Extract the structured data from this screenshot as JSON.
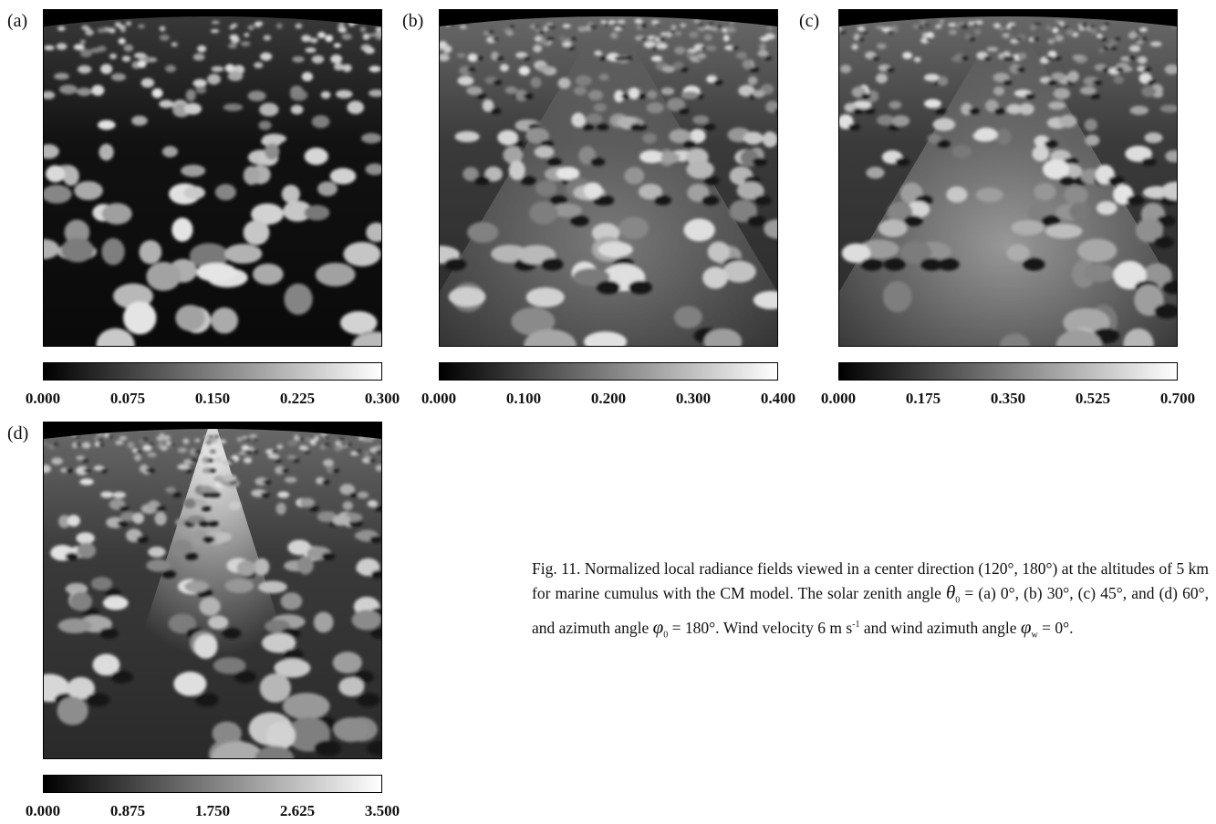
{
  "panels": [
    {
      "label": "(a)",
      "colorbar_ticks": [
        "0.000",
        "0.075",
        "0.150",
        "0.225",
        "0.300"
      ]
    },
    {
      "label": "(b)",
      "colorbar_ticks": [
        "0.000",
        "0.100",
        "0.200",
        "0.300",
        "0.400"
      ]
    },
    {
      "label": "(c)",
      "colorbar_ticks": [
        "0.000",
        "0.175",
        "0.350",
        "0.525",
        "0.700"
      ]
    },
    {
      "label": "(d)",
      "colorbar_ticks": [
        "0.000",
        "0.875",
        "1.750",
        "2.625",
        "3.500"
      ]
    }
  ],
  "caption": [
    "Fig. 11. Normalized local radiance fields viewed in a center direction (120°, 180°) at the altitudes of 5 km for marine cumulus with the CM model. The solar zenith angle ",
    "θ",
    "0",
    " = (a) 0°, (b) 30°, (c) 45°, and (d) 60°, and azimuth angle ",
    "φ",
    "0",
    " = 180°. Wind velocity  6 m s",
    "-1",
    " and wind azimuth angle ",
    "φ",
    "w",
    " = 0°."
  ]
}
